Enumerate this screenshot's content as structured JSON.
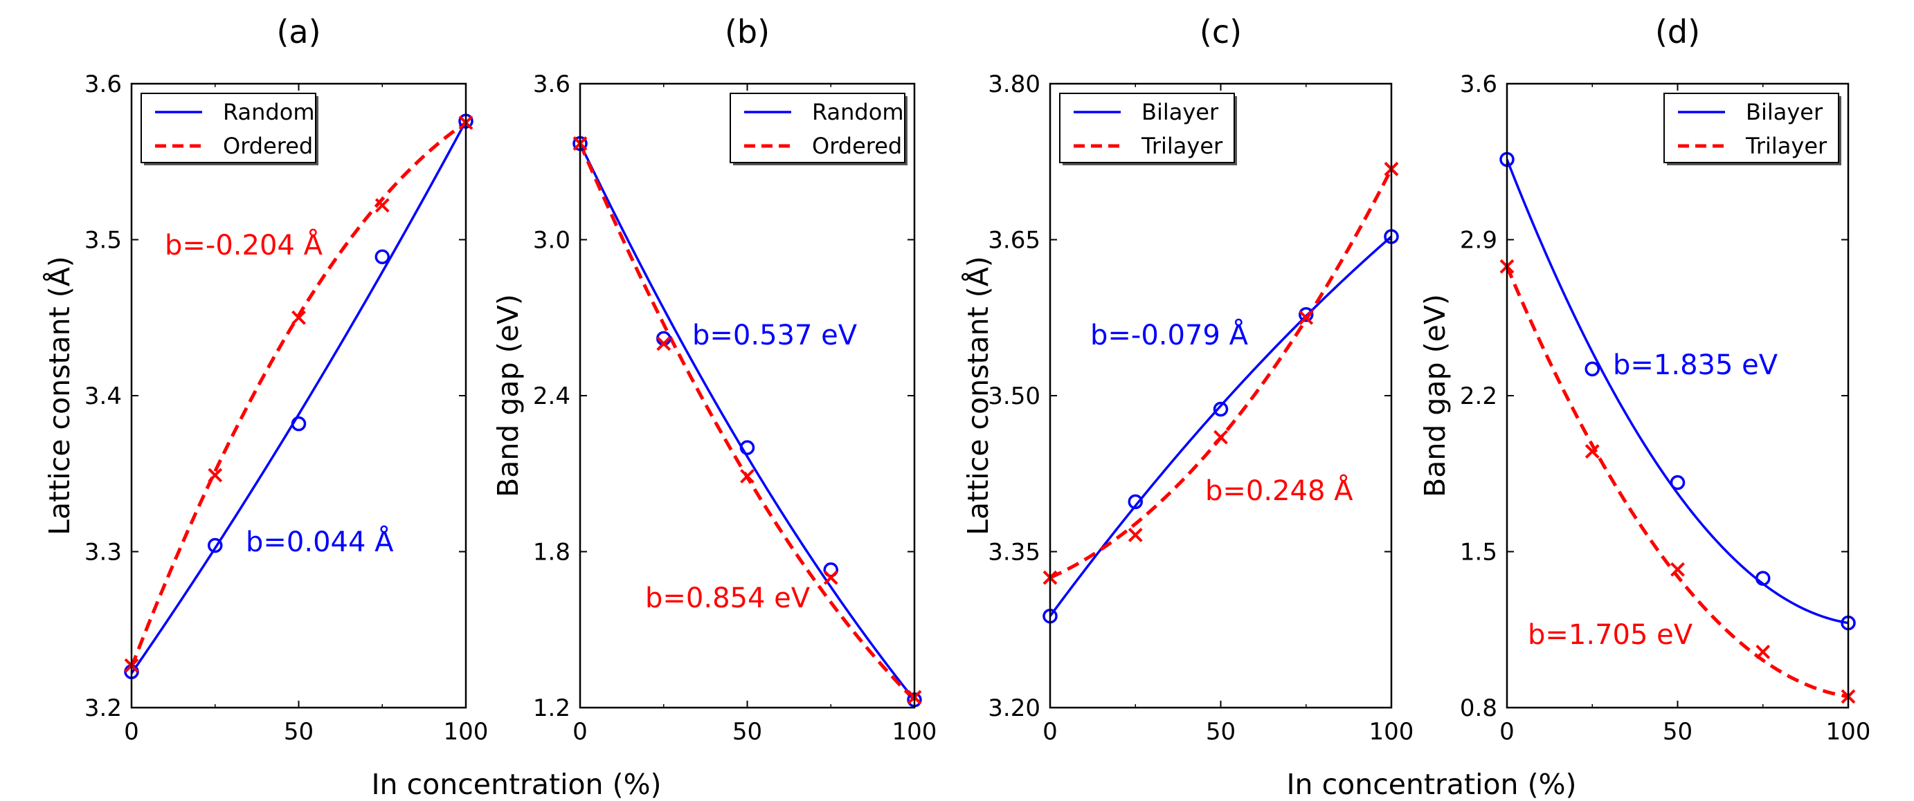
{
  "figure": {
    "xlabel_left": "In concentration (%)",
    "xlabel_right": "In concentration (%)"
  },
  "colors": {
    "blue": "#0000ff",
    "red": "#ff0000",
    "black": "#000000"
  },
  "chart_data": [
    {
      "type": "line",
      "title": "(a)",
      "xlabel": "",
      "ylabel": "Lattice constant (Å)",
      "xlim": [
        0,
        100
      ],
      "ylim": [
        3.2,
        3.6
      ],
      "xticks": [
        "0",
        "50",
        "100"
      ],
      "yticks": [
        "3.2",
        "3.3",
        "3.4",
        "3.5",
        "3.6"
      ],
      "grid": false,
      "legend": {
        "position": "top-left",
        "entries": [
          "Random",
          "Ordered"
        ]
      },
      "series": [
        {
          "name": "Random",
          "color": "#0000ff",
          "style": "solid",
          "marker": "circle",
          "x": [
            0,
            25,
            50,
            75,
            100
          ],
          "points": [
            3.223,
            3.304,
            3.382,
            3.489,
            3.576
          ],
          "fit": {
            "endpoints": [
              3.222,
              3.576
            ],
            "b": 0.044
          }
        },
        {
          "name": "Ordered",
          "color": "#ff0000",
          "style": "dashed",
          "marker": "x",
          "x": [
            0,
            25,
            50,
            75,
            100
          ],
          "points": [
            3.227,
            3.349,
            3.45,
            3.522,
            3.575
          ],
          "fit": {
            "endpoints": [
              3.226,
              3.575
            ],
            "b": -0.204
          }
        }
      ],
      "annotations": [
        {
          "text": "b=-0.204 Å",
          "color": "#ff0000"
        },
        {
          "text": "b=0.044 Å",
          "color": "#0000ff"
        }
      ]
    },
    {
      "type": "line",
      "title": "(b)",
      "xlabel": "",
      "ylabel": "Band gap (eV)",
      "xlim": [
        0,
        100
      ],
      "ylim": [
        1.2,
        3.6
      ],
      "xticks": [
        "0",
        "50",
        "100"
      ],
      "yticks": [
        "1.2",
        "1.8",
        "2.4",
        "3.0",
        "3.6"
      ],
      "grid": false,
      "legend": {
        "position": "top-right",
        "entries": [
          "Random",
          "Ordered"
        ]
      },
      "series": [
        {
          "name": "Random",
          "color": "#0000ff",
          "style": "solid",
          "marker": "circle",
          "x": [
            0,
            25,
            50,
            75,
            100
          ],
          "points": [
            3.37,
            2.62,
            2.2,
            1.73,
            1.23
          ],
          "fit": {
            "endpoints": [
              3.37,
              1.23
            ],
            "b": 0.537
          }
        },
        {
          "name": "Ordered",
          "color": "#ff0000",
          "style": "dashed",
          "marker": "x",
          "x": [
            0,
            25,
            50,
            75,
            100
          ],
          "points": [
            3.37,
            2.6,
            2.09,
            1.7,
            1.24
          ],
          "fit": {
            "endpoints": [
              3.37,
              1.23
            ],
            "b": 0.854
          }
        }
      ],
      "annotations": [
        {
          "text": "b=0.537 eV",
          "color": "#0000ff"
        },
        {
          "text": "b=0.854 eV",
          "color": "#ff0000"
        }
      ]
    },
    {
      "type": "line",
      "title": "(c)",
      "xlabel": "",
      "ylabel": "Lattice constant (Å)",
      "xlim": [
        0,
        100
      ],
      "ylim": [
        3.2,
        3.8
      ],
      "xticks": [
        "0",
        "50",
        "100"
      ],
      "yticks": [
        "3.20",
        "3.35",
        "3.50",
        "3.65",
        "3.80"
      ],
      "grid": false,
      "legend": {
        "position": "top-left",
        "entries": [
          "Bilayer",
          "Trilayer"
        ]
      },
      "series": [
        {
          "name": "Bilayer",
          "color": "#0000ff",
          "style": "solid",
          "marker": "circle",
          "x": [
            0,
            25,
            50,
            75,
            100
          ],
          "points": [
            3.288,
            3.398,
            3.487,
            3.578,
            3.653
          ],
          "fit": {
            "endpoints": [
              3.288,
              3.653
            ],
            "b": -0.079
          }
        },
        {
          "name": "Trilayer",
          "color": "#ff0000",
          "style": "dashed",
          "marker": "x",
          "x": [
            0,
            25,
            50,
            75,
            100
          ],
          "points": [
            3.325,
            3.366,
            3.46,
            3.575,
            3.718
          ],
          "fit": {
            "endpoints": [
              3.325,
              3.718
            ],
            "b": 0.248
          }
        }
      ],
      "annotations": [
        {
          "text": "b=-0.079 Å",
          "color": "#0000ff"
        },
        {
          "text": "b=0.248 Å",
          "color": "#ff0000"
        }
      ]
    },
    {
      "type": "line",
      "title": "(d)",
      "xlabel": "",
      "ylabel": "Band gap (eV)",
      "xlim": [
        0,
        100
      ],
      "ylim": [
        0.8,
        3.6
      ],
      "xticks": [
        "0",
        "50",
        "100"
      ],
      "yticks": [
        "0.8",
        "1.5",
        "2.2",
        "2.9",
        "3.6"
      ],
      "grid": false,
      "legend": {
        "position": "top-right",
        "entries": [
          "Bilayer",
          "Trilayer"
        ]
      },
      "series": [
        {
          "name": "Bilayer",
          "color": "#0000ff",
          "style": "solid",
          "marker": "circle",
          "x": [
            0,
            25,
            50,
            75,
            100
          ],
          "points": [
            3.26,
            2.32,
            1.81,
            1.38,
            1.18
          ],
          "fit": {
            "endpoints": [
              3.26,
              1.18
            ],
            "b": 1.835
          }
        },
        {
          "name": "Trilayer",
          "color": "#ff0000",
          "style": "dashed",
          "marker": "x",
          "x": [
            0,
            25,
            50,
            75,
            100
          ],
          "points": [
            2.78,
            1.95,
            1.42,
            1.05,
            0.85
          ],
          "fit": {
            "endpoints": [
              2.78,
              0.85
            ],
            "b": 1.705
          }
        }
      ],
      "annotations": [
        {
          "text": "b=1.835 eV",
          "color": "#0000ff"
        },
        {
          "text": "b=1.705 eV",
          "color": "#ff0000"
        }
      ]
    }
  ]
}
